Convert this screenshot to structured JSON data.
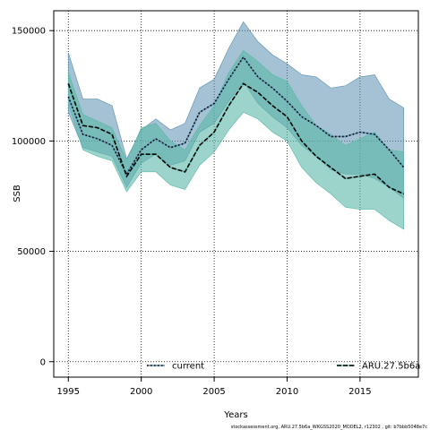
{
  "chart_data": {
    "type": "area",
    "xlabel": "Years",
    "ylabel": "SSB",
    "xlim": [
      1994,
      2019
    ],
    "ylim": [
      -7000,
      159000
    ],
    "x_ticks": [
      1995,
      2000,
      2005,
      2010,
      2015
    ],
    "x_tick_labels": [
      "1995",
      "2000",
      "2005",
      "2010",
      "2015"
    ],
    "y_ticks": [
      0,
      50000,
      100000,
      150000
    ],
    "y_tick_labels": [
      "0",
      "50000",
      "100000",
      "150000"
    ],
    "grid": true,
    "legend_position": "bottom",
    "footnote": "stockassessment.org, ARU.27.5b6a_WKGSS2020_MODEL2, r12302 , git: b7bbb5048e7c",
    "x": [
      1995,
      1996,
      1997,
      1998,
      1999,
      2000,
      2001,
      2002,
      2003,
      2004,
      2005,
      2006,
      2007,
      2008,
      2009,
      2010,
      2011,
      2012,
      2013,
      2014,
      2015,
      2016,
      2017,
      2018
    ],
    "series": [
      {
        "name": "current",
        "color": "#5b8fb0",
        "line_color": "#000000",
        "line_style": "dotted",
        "values": [
          120000,
          103000,
          101000,
          98000,
          85000,
          96000,
          101000,
          97000,
          99000,
          113000,
          117000,
          128000,
          138000,
          129000,
          124000,
          118000,
          111000,
          107000,
          102000,
          102000,
          104000,
          103000,
          96000,
          88000
        ],
        "upper": [
          140000,
          119000,
          119000,
          116000,
          92000,
          105000,
          110000,
          105000,
          108000,
          124000,
          128000,
          142000,
          154000,
          145000,
          139000,
          135000,
          130000,
          129000,
          124000,
          125000,
          129000,
          130000,
          119000,
          115000
        ],
        "lower": [
          113000,
          97000,
          95000,
          93000,
          79000,
          90000,
          94000,
          89000,
          91000,
          104000,
          108000,
          118000,
          127000,
          117000,
          111000,
          106000,
          98000,
          93000,
          87000,
          85000,
          85000,
          83000,
          79000,
          74000
        ]
      },
      {
        "name": "ARU.27.5b6a",
        "color": "#5ab8a8",
        "line_color": "#000000",
        "line_style": "dashed",
        "values": [
          126000,
          107000,
          106000,
          103000,
          84000,
          94000,
          94000,
          88000,
          86000,
          98000,
          104000,
          116000,
          126000,
          122000,
          116000,
          111000,
          100000,
          93000,
          88000,
          83000,
          84000,
          85000,
          79000,
          76000
        ],
        "upper": [
          131000,
          112000,
          109000,
          106000,
          91000,
          106000,
          108000,
          100000,
          96000,
          107000,
          116000,
          131000,
          141000,
          136000,
          130000,
          127000,
          116000,
          107000,
          103000,
          98000,
          101000,
          104000,
          96000,
          95000
        ],
        "lower": [
          117000,
          96000,
          93000,
          91000,
          77000,
          86000,
          86000,
          80000,
          78000,
          89000,
          95000,
          105000,
          113000,
          110000,
          104000,
          100000,
          88000,
          81000,
          76000,
          70000,
          69000,
          69000,
          64000,
          60000
        ]
      }
    ]
  }
}
